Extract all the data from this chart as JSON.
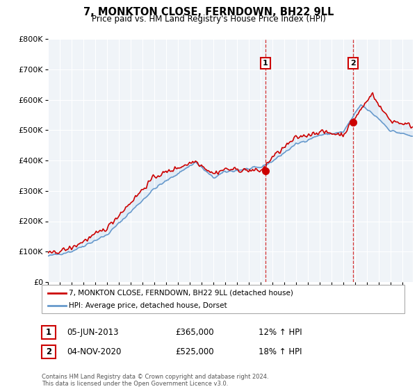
{
  "title": "7, MONKTON CLOSE, FERNDOWN, BH22 9LL",
  "subtitle": "Price paid vs. HM Land Registry's House Price Index (HPI)",
  "ylim": [
    0,
    800000
  ],
  "yticks": [
    0,
    100000,
    200000,
    300000,
    400000,
    500000,
    600000,
    700000,
    800000
  ],
  "ytick_labels": [
    "£0",
    "£100K",
    "£200K",
    "£300K",
    "£400K",
    "£500K",
    "£600K",
    "£700K",
    "£800K"
  ],
  "background_color": "#ffffff",
  "plot_bg_color": "#f0f4f8",
  "hpi_color": "#6699cc",
  "hpi_fill_color": "#dce8f5",
  "price_color": "#cc0000",
  "sale1_date": "05-JUN-2013",
  "sale1_price": "£365,000",
  "sale1_hpi": "12% ↑ HPI",
  "sale2_date": "04-NOV-2020",
  "sale2_price": "£525,000",
  "sale2_hpi": "18% ↑ HPI",
  "legend_line1": "7, MONKTON CLOSE, FERNDOWN, BH22 9LL (detached house)",
  "legend_line2": "HPI: Average price, detached house, Dorset",
  "footer": "Contains HM Land Registry data © Crown copyright and database right 2024.\nThis data is licensed under the Open Government Licence v3.0.",
  "dashed_red": "#cc0000",
  "sale1_year": 2013.42,
  "sale2_year": 2020.84
}
